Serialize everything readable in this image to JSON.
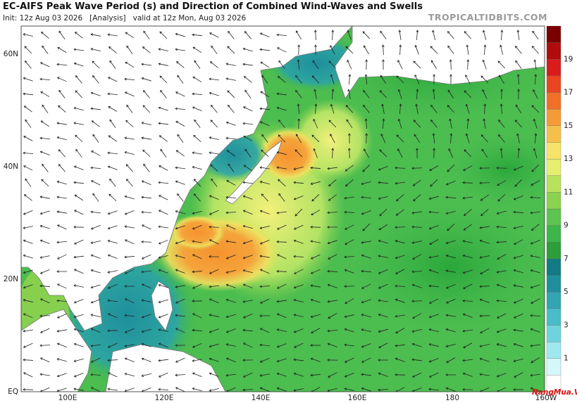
{
  "header": {
    "title": "EC-AIFS Peak Wave Period (s) and Direction of Combined Wind-Waves and Swells",
    "subtitle": "Init: 12z Aug 03 2026   [Analysis]   valid at 12z Mon, Aug 03 2026",
    "site": "TROPICALTIDBITS.COM"
  },
  "map": {
    "lat_labels": [
      "60N",
      "40N",
      "20N",
      "EQ"
    ],
    "lon_labels": [
      "100E",
      "120E",
      "140E",
      "160E",
      "180",
      "160W"
    ]
  },
  "colorbar": {
    "labels": [
      1,
      3,
      5,
      7,
      9,
      11,
      13,
      15,
      17,
      19
    ]
  },
  "watermark": "NangMua.VN"
}
